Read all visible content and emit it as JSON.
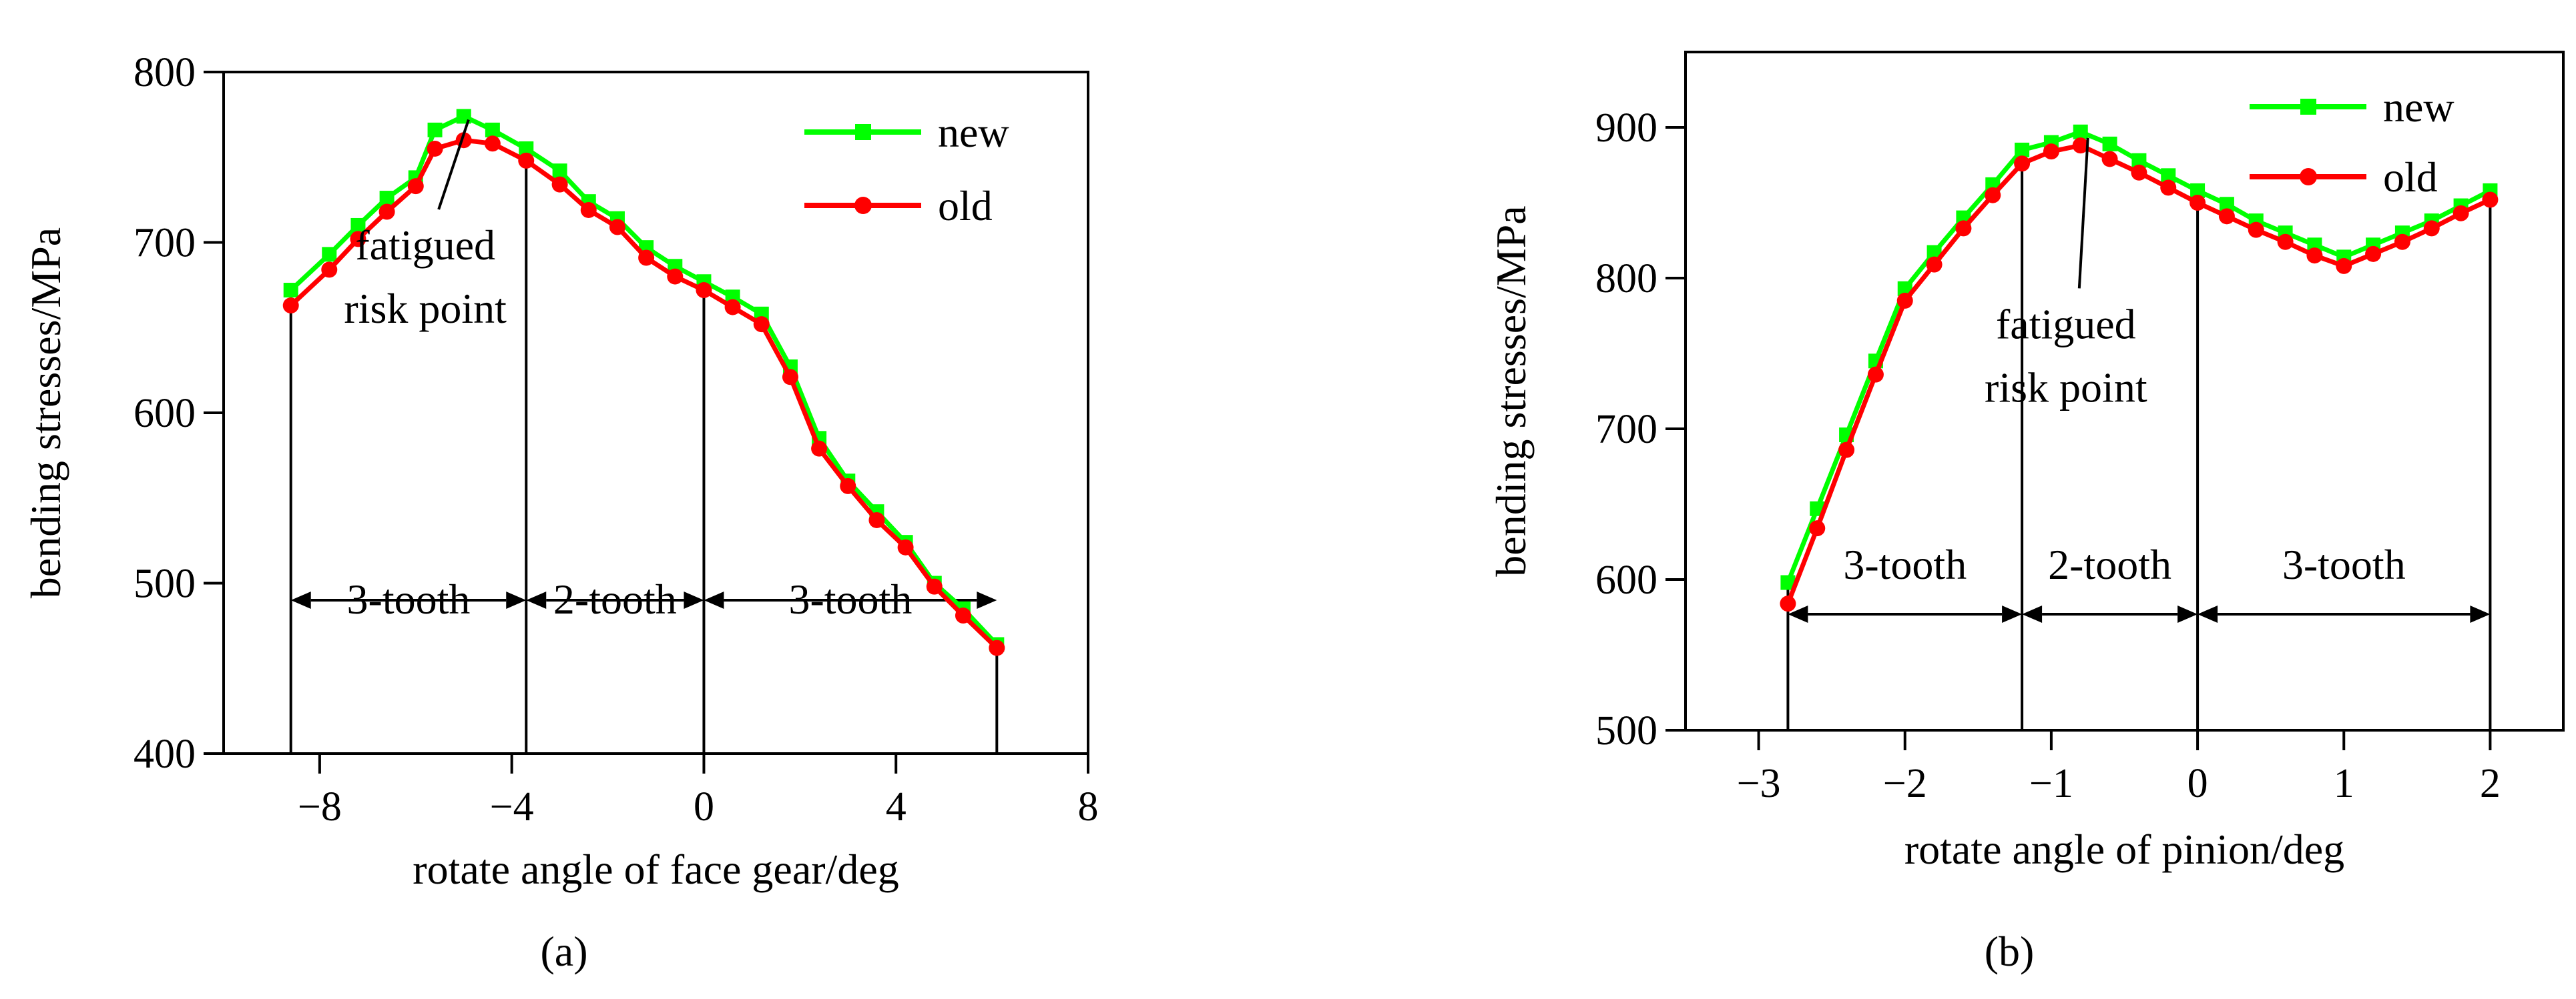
{
  "figure": {
    "panel_labels": [
      "(a)",
      "(b)"
    ]
  },
  "chart_data": [
    {
      "type": "line",
      "panel": "(a)",
      "title": "",
      "xlabel": "rotate angle of face gear/deg",
      "ylabel": "bending stresses/MPa",
      "xlim": [
        -10,
        8
      ],
      "ylim": [
        400,
        800
      ],
      "xticks": [
        -8,
        -4,
        0,
        4,
        8
      ],
      "xtick_labels": [
        "−8",
        "−4",
        "0",
        "4",
        "8"
      ],
      "yticks": [
        400,
        500,
        600,
        700,
        800
      ],
      "ytick_labels": [
        "400",
        "500",
        "600",
        "700",
        "800"
      ],
      "grid": false,
      "legend": {
        "position": "top-right",
        "entries": [
          "new",
          "old"
        ]
      },
      "series": [
        {
          "name": "new",
          "color": "#00ff00",
          "marker": "square",
          "x": [
            -8.6,
            -7.8,
            -7.2,
            -6.6,
            -6.0,
            -5.6,
            -5.0,
            -4.4,
            -3.7,
            -3.0,
            -2.4,
            -1.8,
            -1.2,
            -0.6,
            0.0,
            0.6,
            1.2,
            1.8,
            2.4,
            3.0,
            3.6,
            4.2,
            4.8,
            5.4,
            6.1
          ],
          "y": [
            672,
            693,
            710,
            726,
            738,
            766,
            774,
            766,
            755,
            742,
            724,
            714,
            697,
            686,
            677,
            668,
            658,
            627,
            585,
            560,
            542,
            524,
            500,
            485,
            464
          ]
        },
        {
          "name": "old",
          "color": "#ff0000",
          "marker": "circle",
          "x": [
            -8.6,
            -7.8,
            -7.2,
            -6.6,
            -6.0,
            -5.6,
            -5.0,
            -4.4,
            -3.7,
            -3.0,
            -2.4,
            -1.8,
            -1.2,
            -0.6,
            0.0,
            0.6,
            1.2,
            1.8,
            2.4,
            3.0,
            3.6,
            4.2,
            4.8,
            5.4,
            6.1
          ],
          "y": [
            663,
            684,
            702,
            718,
            733,
            755,
            760,
            758,
            748,
            734,
            719,
            709,
            691,
            680,
            672,
            662,
            652,
            621,
            579,
            557,
            537,
            521,
            498,
            481,
            462
          ]
        }
      ],
      "boundaries": [
        -8.6,
        -3.7,
        0.0,
        6.1
      ],
      "arrow_y": 490,
      "regions": [
        {
          "label": "3-tooth",
          "from": -8.6,
          "to": -3.7
        },
        {
          "label": "2-tooth",
          "from": -3.7,
          "to": 0.0
        },
        {
          "label": "3-tooth",
          "from": 0.0,
          "to": 6.1
        }
      ],
      "annotation": {
        "text": [
          "fatigued",
          "risk point"
        ],
        "target": [
          -4.9,
          772
        ],
        "text_at": [
          -5.8,
          690
        ]
      }
    },
    {
      "type": "line",
      "panel": "(b)",
      "title": "",
      "xlabel": "rotate angle of pinion/deg",
      "ylabel": "bending stresses/MPa",
      "xlim": [
        -3.5,
        2.5
      ],
      "ylim": [
        500,
        950
      ],
      "xticks": [
        -3,
        -2,
        -1,
        0,
        1,
        2
      ],
      "xtick_labels": [
        "−3",
        "−2",
        "−1",
        "0",
        "1",
        "2"
      ],
      "yticks": [
        500,
        600,
        700,
        800,
        900
      ],
      "ytick_labels": [
        "500",
        "600",
        "700",
        "800",
        "900"
      ],
      "grid": false,
      "legend": {
        "position": "top-right",
        "entries": [
          "new",
          "old"
        ]
      },
      "series": [
        {
          "name": "new",
          "color": "#00ff00",
          "marker": "square",
          "x": [
            -2.8,
            -2.6,
            -2.4,
            -2.2,
            -2.0,
            -1.8,
            -1.6,
            -1.4,
            -1.2,
            -1.0,
            -0.8,
            -0.6,
            -0.4,
            -0.2,
            0.0,
            0.2,
            0.4,
            0.6,
            0.8,
            1.0,
            1.2,
            1.4,
            1.6,
            1.8,
            2.0
          ],
          "y": [
            598,
            647,
            696,
            745,
            793,
            817,
            840,
            862,
            885,
            890,
            897,
            889,
            878,
            868,
            858,
            849,
            838,
            830,
            822,
            814,
            822,
            830,
            838,
            848,
            858
          ]
        },
        {
          "name": "old",
          "color": "#ff0000",
          "marker": "circle",
          "x": [
            -2.8,
            -2.6,
            -2.4,
            -2.2,
            -2.0,
            -1.8,
            -1.6,
            -1.4,
            -1.2,
            -1.0,
            -0.8,
            -0.6,
            -0.4,
            -0.2,
            0.0,
            0.2,
            0.4,
            0.6,
            0.8,
            1.0,
            1.2,
            1.4,
            1.6,
            1.8,
            2.0
          ],
          "y": [
            584,
            634,
            686,
            736,
            785,
            809,
            833,
            855,
            876,
            884,
            888,
            879,
            870,
            860,
            850,
            841,
            832,
            824,
            815,
            808,
            816,
            824,
            833,
            843,
            852
          ]
        }
      ],
      "boundaries": [
        -2.8,
        -1.2,
        0.0,
        2.0
      ],
      "arrow_y": 577,
      "regions": [
        {
          "label": "3-tooth",
          "from": -2.8,
          "to": -1.2
        },
        {
          "label": "2-tooth",
          "from": -1.2,
          "to": 0.0
        },
        {
          "label": "3-tooth",
          "from": 0.0,
          "to": 2.0
        }
      ],
      "annotation": {
        "text": [
          "fatigued",
          "risk point"
        ],
        "target": [
          -0.75,
          893
        ],
        "text_at": [
          -0.9,
          760
        ]
      }
    }
  ]
}
